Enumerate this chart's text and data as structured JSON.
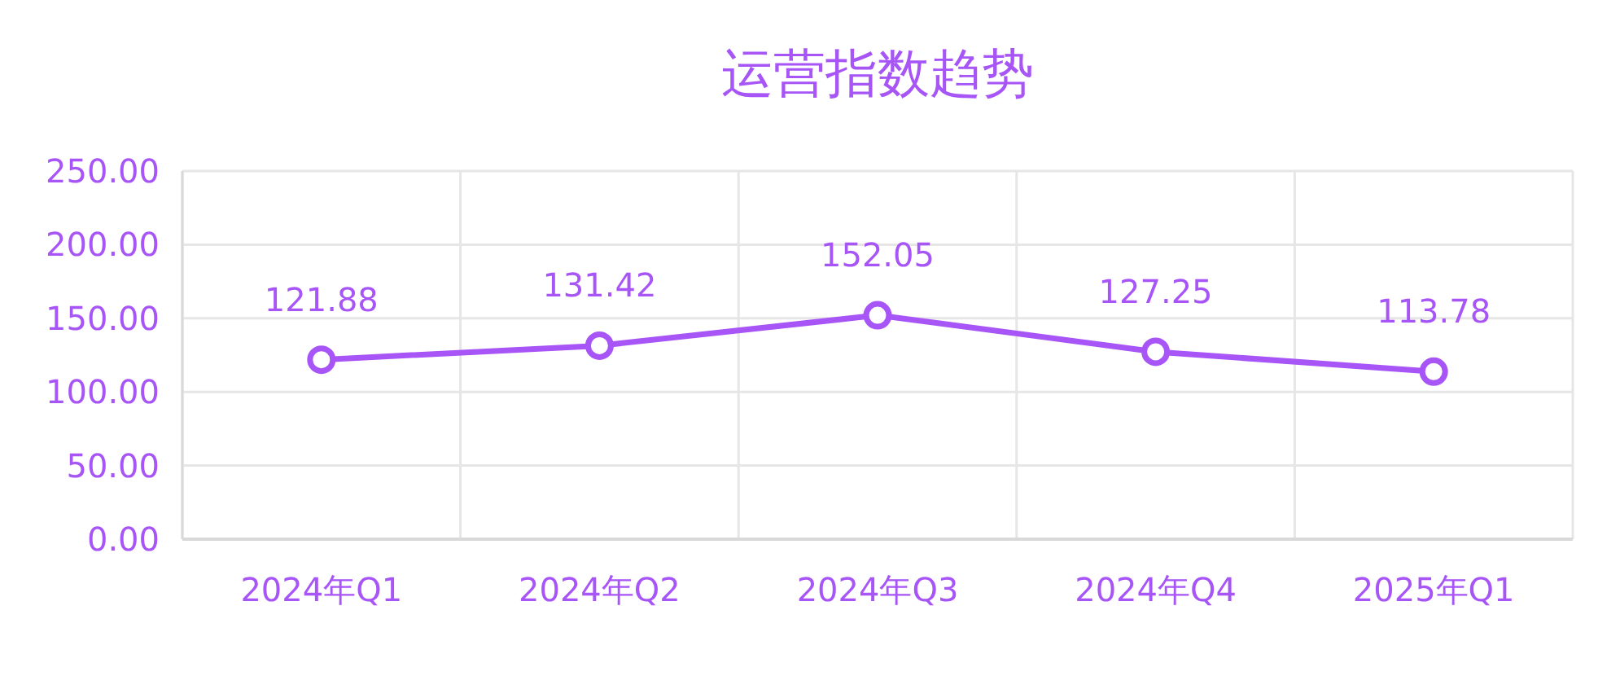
{
  "chart_data": {
    "type": "line",
    "title": "运营指数趋势",
    "categories": [
      "2024年Q1",
      "2024年Q2",
      "2024年Q3",
      "2024年Q4",
      "2025年Q1"
    ],
    "series": [
      {
        "color": "#a855f7",
        "values": [
          121.88,
          131.42,
          152.05,
          127.25,
          113.78
        ]
      }
    ],
    "ylim": [
      0,
      250
    ],
    "yticks": [
      {
        "value": 0,
        "label": "0.00"
      },
      {
        "value": 50,
        "label": "50.00"
      },
      {
        "value": 100,
        "label": "100.00"
      },
      {
        "value": 150,
        "label": "150.00"
      },
      {
        "value": 200,
        "label": "200.00"
      },
      {
        "value": 250,
        "label": "250.00"
      }
    ],
    "grid": true,
    "marker": "circle",
    "line_style": "solid",
    "data_labels": true
  }
}
